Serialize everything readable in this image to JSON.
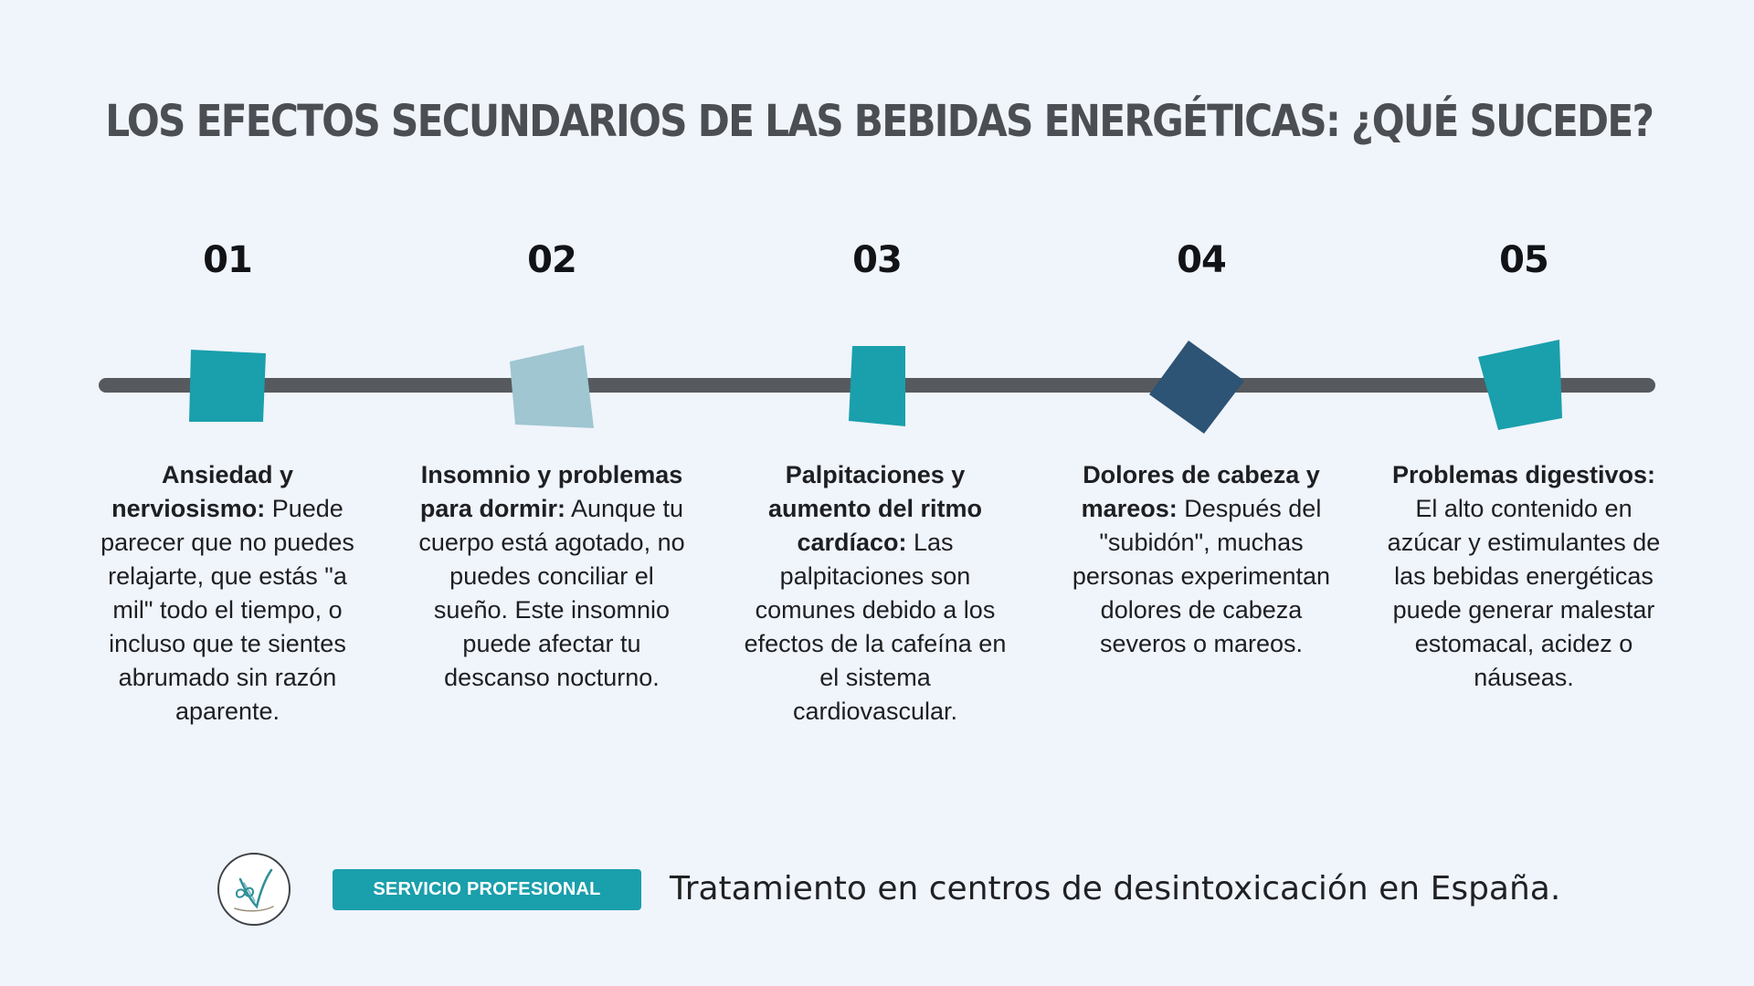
{
  "title": "LOS EFECTOS SECUNDARIOS DE LAS BEBIDAS ENERGÉTICAS: ¿QUÉ SUCEDE?",
  "colors": {
    "background": "#f0f4fb",
    "line": "#565a5e",
    "teal": "#1a9fac",
    "light_blue": "#9fc6d1",
    "navy": "#2d5375"
  },
  "steps": [
    {
      "number": "01",
      "heading": "Ansiedad y nerviosismo:",
      "text": " Puede parecer que no puedes relajarte, que estás \"a mil\" todo el tiempo, o incluso que te sientes abrumado sin razón aparente.",
      "marker_color": "#1a9fac"
    },
    {
      "number": "02",
      "heading": "Insomnio y problemas para dormir:",
      "text": " Aunque tu cuerpo está agotado, no puedes conciliar el sueño. Este insomnio puede afectar tu descanso nocturno.",
      "marker_color": "#9fc6d1"
    },
    {
      "number": "03",
      "heading": "Palpitaciones y aumento del ritmo cardíaco:",
      "text": " Las palpitaciones son comunes debido a los efectos de la cafeína en el sistema cardiovascular.",
      "marker_color": "#1a9fac"
    },
    {
      "number": "04",
      "heading": "Dolores de cabeza y mareos:",
      "text": " Después del \"subidón\", muchas personas experimentan dolores de cabeza severos o mareos.",
      "marker_color": "#2d5375"
    },
    {
      "number": "05",
      "heading": "Problemas digestivos:",
      "text": " El alto contenido en azúcar y estimulantes de las bebidas energéticas puede generar malestar estomacal, acidez o náuseas.",
      "marker_color": "#1a9fac"
    }
  ],
  "footer": {
    "logo_icon": "logo-icon",
    "badge": "SERVICIO PROFESIONAL",
    "text": "Tratamiento en centros de desintoxicación en España."
  }
}
